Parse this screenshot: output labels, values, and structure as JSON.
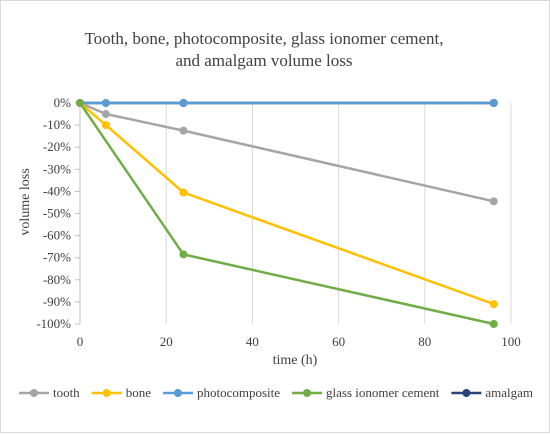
{
  "chart_data": {
    "type": "line",
    "title": [
      "Tooth, bone, photocomposite, glass ionomer cement,",
      "and amalgam volume loss"
    ],
    "xlabel": "time (h)",
    "ylabel": "volume loss",
    "xlim": [
      0,
      100
    ],
    "ylim": [
      -100,
      0
    ],
    "x_ticks": [
      0,
      20,
      40,
      60,
      80,
      100
    ],
    "y_ticks": [
      0,
      -10,
      -20,
      -30,
      -40,
      -50,
      -60,
      -70,
      -80,
      -90,
      -100
    ],
    "y_tick_labels": [
      "0%",
      "-10%",
      "-20%",
      "-30%",
      "-40%",
      "-50%",
      "-60%",
      "-70%",
      "-80%",
      "-90%",
      "-100%"
    ],
    "grid": "vertical",
    "legend_position": "bottom",
    "series": [
      {
        "name": "tooth",
        "color": "#a5a5a5",
        "x": [
          0,
          6,
          24,
          96
        ],
        "y": [
          0,
          -5,
          -12.5,
          -44.5
        ]
      },
      {
        "name": "bone",
        "color": "#ffc000",
        "x": [
          0,
          6,
          24,
          96
        ],
        "y": [
          0,
          -10,
          -40.5,
          -91
        ]
      },
      {
        "name": "photocomposite",
        "color": "#5b9bd5",
        "x": [
          0,
          6,
          24,
          96
        ],
        "y": [
          0,
          0,
          0,
          0
        ]
      },
      {
        "name": "glass ionomer cement",
        "color": "#70ad47",
        "x": [
          0,
          24,
          96
        ],
        "y": [
          0,
          -68.5,
          -100
        ]
      },
      {
        "name": "amalgam",
        "color": "#264478",
        "x": [
          0,
          24,
          96
        ],
        "y": [
          0,
          0,
          0
        ]
      }
    ]
  }
}
